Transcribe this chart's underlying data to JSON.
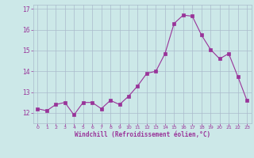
{
  "x": [
    0,
    1,
    2,
    3,
    4,
    5,
    6,
    7,
    8,
    9,
    10,
    11,
    12,
    13,
    14,
    15,
    16,
    17,
    18,
    19,
    20,
    21,
    22,
    23
  ],
  "y": [
    12.2,
    12.1,
    12.4,
    12.5,
    11.9,
    12.5,
    12.5,
    12.2,
    12.6,
    12.4,
    12.8,
    13.3,
    13.9,
    14.0,
    14.85,
    16.3,
    16.7,
    16.65,
    15.75,
    15.05,
    14.6,
    14.85,
    13.75,
    12.6
  ],
  "line_color": "#993399",
  "marker": "s",
  "marker_size": 2.5,
  "bg_color": "#cce8e8",
  "grid_color": "#aabbcc",
  "xlabel": "Windchill (Refroidissement éolien,°C)",
  "xlabel_color": "#993399",
  "tick_color": "#993399",
  "ylim": [
    11.5,
    17.2
  ],
  "xlim": [
    -0.5,
    23.5
  ],
  "yticks": [
    12,
    13,
    14,
    15,
    16,
    17
  ],
  "xticks": [
    0,
    1,
    2,
    3,
    4,
    5,
    6,
    7,
    8,
    9,
    10,
    11,
    12,
    13,
    14,
    15,
    16,
    17,
    18,
    19,
    20,
    21,
    22,
    23
  ]
}
